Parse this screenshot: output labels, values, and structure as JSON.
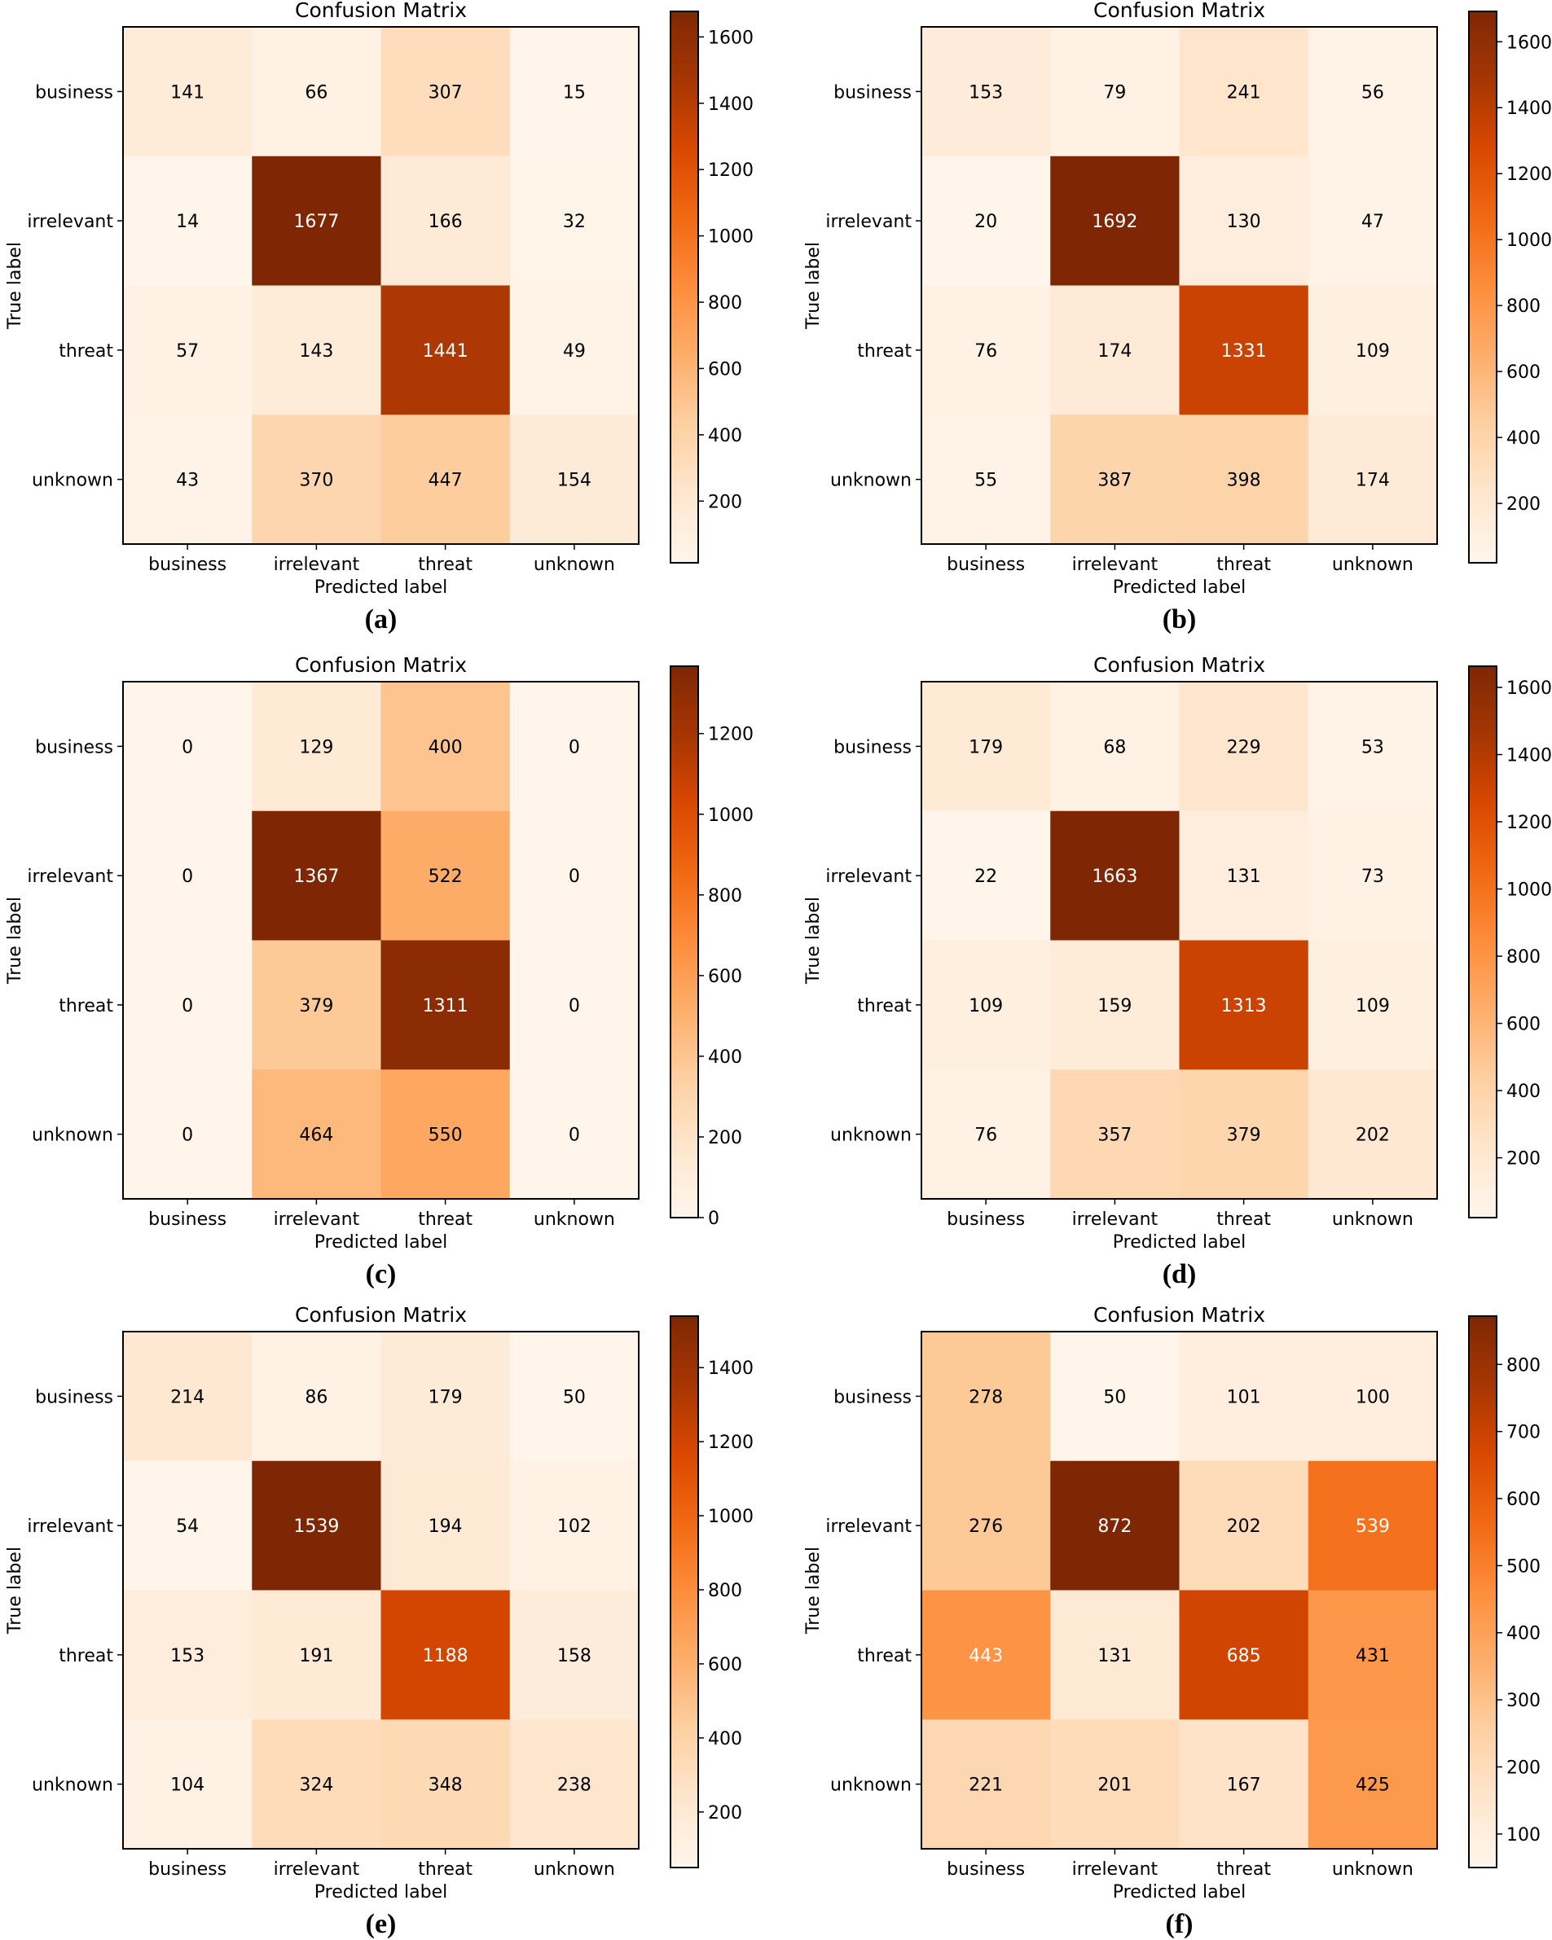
{
  "chart_data": [
    {
      "type": "heatmap",
      "caption": "(a)",
      "title": "Confusion Matrix",
      "xlabel": "Predicted label",
      "ylabel": "True label",
      "x_categories": [
        "business",
        "irrelevant",
        "threat",
        "unknown"
      ],
      "y_categories": [
        "business",
        "irrelevant",
        "threat",
        "unknown"
      ],
      "values": [
        [
          141,
          66,
          307,
          15
        ],
        [
          14,
          1677,
          166,
          32
        ],
        [
          57,
          143,
          1441,
          49
        ],
        [
          43,
          370,
          447,
          154
        ]
      ],
      "colorbar": {
        "range": [
          14,
          1677
        ],
        "ticks": [
          200,
          400,
          600,
          800,
          1000,
          1200,
          1400,
          1600
        ]
      }
    },
    {
      "type": "heatmap",
      "caption": "(b)",
      "title": "Confusion Matrix",
      "xlabel": "Predicted label",
      "ylabel": "True label",
      "x_categories": [
        "business",
        "irrelevant",
        "threat",
        "unknown"
      ],
      "y_categories": [
        "business",
        "irrelevant",
        "threat",
        "unknown"
      ],
      "values": [
        [
          153,
          79,
          241,
          56
        ],
        [
          20,
          1692,
          130,
          47
        ],
        [
          76,
          174,
          1331,
          109
        ],
        [
          55,
          387,
          398,
          174
        ]
      ],
      "colorbar": {
        "range": [
          20,
          1692
        ],
        "ticks": [
          200,
          400,
          600,
          800,
          1000,
          1200,
          1400,
          1600
        ]
      }
    },
    {
      "type": "heatmap",
      "caption": "(c)",
      "title": "Confusion Matrix",
      "xlabel": "Predicted label",
      "ylabel": "True label",
      "x_categories": [
        "business",
        "irrelevant",
        "threat",
        "unknown"
      ],
      "y_categories": [
        "business",
        "irrelevant",
        "threat",
        "unknown"
      ],
      "values": [
        [
          0,
          129,
          400,
          0
        ],
        [
          0,
          1367,
          522,
          0
        ],
        [
          0,
          379,
          1311,
          0
        ],
        [
          0,
          464,
          550,
          0
        ]
      ],
      "colorbar": {
        "range": [
          0,
          1367
        ],
        "ticks": [
          0,
          200,
          400,
          600,
          800,
          1000,
          1200
        ]
      }
    },
    {
      "type": "heatmap",
      "caption": "(d)",
      "title": "Confusion Matrix",
      "xlabel": "Predicted label",
      "ylabel": "True label",
      "x_categories": [
        "business",
        "irrelevant",
        "threat",
        "unknown"
      ],
      "y_categories": [
        "business",
        "irrelevant",
        "threat",
        "unknown"
      ],
      "values": [
        [
          179,
          68,
          229,
          53
        ],
        [
          22,
          1663,
          131,
          73
        ],
        [
          109,
          159,
          1313,
          109
        ],
        [
          76,
          357,
          379,
          202
        ]
      ],
      "colorbar": {
        "range": [
          22,
          1663
        ],
        "ticks": [
          200,
          400,
          600,
          800,
          1000,
          1200,
          1400,
          1600
        ]
      }
    },
    {
      "type": "heatmap",
      "caption": "(e)",
      "title": "Confusion Matrix",
      "xlabel": "Predicted label",
      "ylabel": "True label",
      "x_categories": [
        "business",
        "irrelevant",
        "threat",
        "unknown"
      ],
      "y_categories": [
        "business",
        "irrelevant",
        "threat",
        "unknown"
      ],
      "values": [
        [
          214,
          86,
          179,
          50
        ],
        [
          54,
          1539,
          194,
          102
        ],
        [
          153,
          191,
          1188,
          158
        ],
        [
          104,
          324,
          348,
          238
        ]
      ],
      "colorbar": {
        "range": [
          50,
          1539
        ],
        "ticks": [
          200,
          400,
          600,
          800,
          1000,
          1200,
          1400
        ]
      }
    },
    {
      "type": "heatmap",
      "caption": "(f)",
      "title": "Confusion Matrix",
      "xlabel": "Predicted label",
      "ylabel": "True label",
      "x_categories": [
        "business",
        "irrelevant",
        "threat",
        "unknown"
      ],
      "y_categories": [
        "business",
        "irrelevant",
        "threat",
        "unknown"
      ],
      "values": [
        [
          278,
          50,
          101,
          100
        ],
        [
          276,
          872,
          202,
          539
        ],
        [
          443,
          131,
          685,
          431
        ],
        [
          221,
          201,
          167,
          425
        ]
      ],
      "colorbar": {
        "range": [
          50,
          872
        ],
        "ticks": [
          100,
          200,
          300,
          400,
          500,
          600,
          700,
          800
        ]
      }
    }
  ],
  "colormap": [
    "#fff5eb",
    "#fee6ce",
    "#fdd0a2",
    "#fdae6b",
    "#fd8d3c",
    "#f16913",
    "#d94801",
    "#a63603",
    "#7f2704"
  ]
}
